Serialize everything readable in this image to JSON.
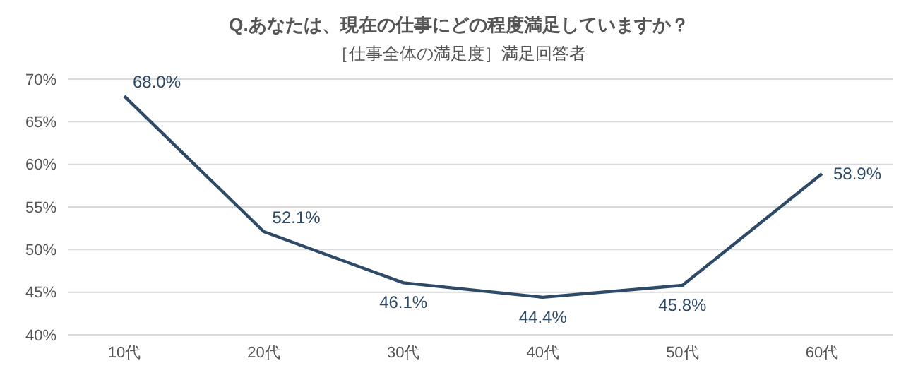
{
  "chart_data": {
    "type": "line",
    "title": "Q.あなたは、現在の仕事にどの程度満足していますか？",
    "subtitle": "［仕事全体の満足度］満足回答者",
    "categories": [
      "10代",
      "20代",
      "30代",
      "40代",
      "50代",
      "60代"
    ],
    "series": [
      {
        "color": "#2e4a66",
        "values": [
          68.0,
          52.1,
          46.1,
          44.4,
          45.8,
          58.9
        ],
        "value_labels": [
          "68.0%",
          "52.1%",
          "46.1%",
          "44.4%",
          "45.8%",
          "58.9%"
        ]
      }
    ],
    "ylim": [
      40,
      70
    ],
    "yticks": [
      {
        "value": 40,
        "label": "40%"
      },
      {
        "value": 45,
        "label": "45%"
      },
      {
        "value": 50,
        "label": "50%"
      },
      {
        "value": 55,
        "label": "55%"
      },
      {
        "value": 60,
        "label": "60%"
      },
      {
        "value": 65,
        "label": "65%"
      },
      {
        "value": 70,
        "label": "70%"
      }
    ],
    "grid": "y",
    "marker": "none",
    "line_style": "solid",
    "legend": false
  }
}
